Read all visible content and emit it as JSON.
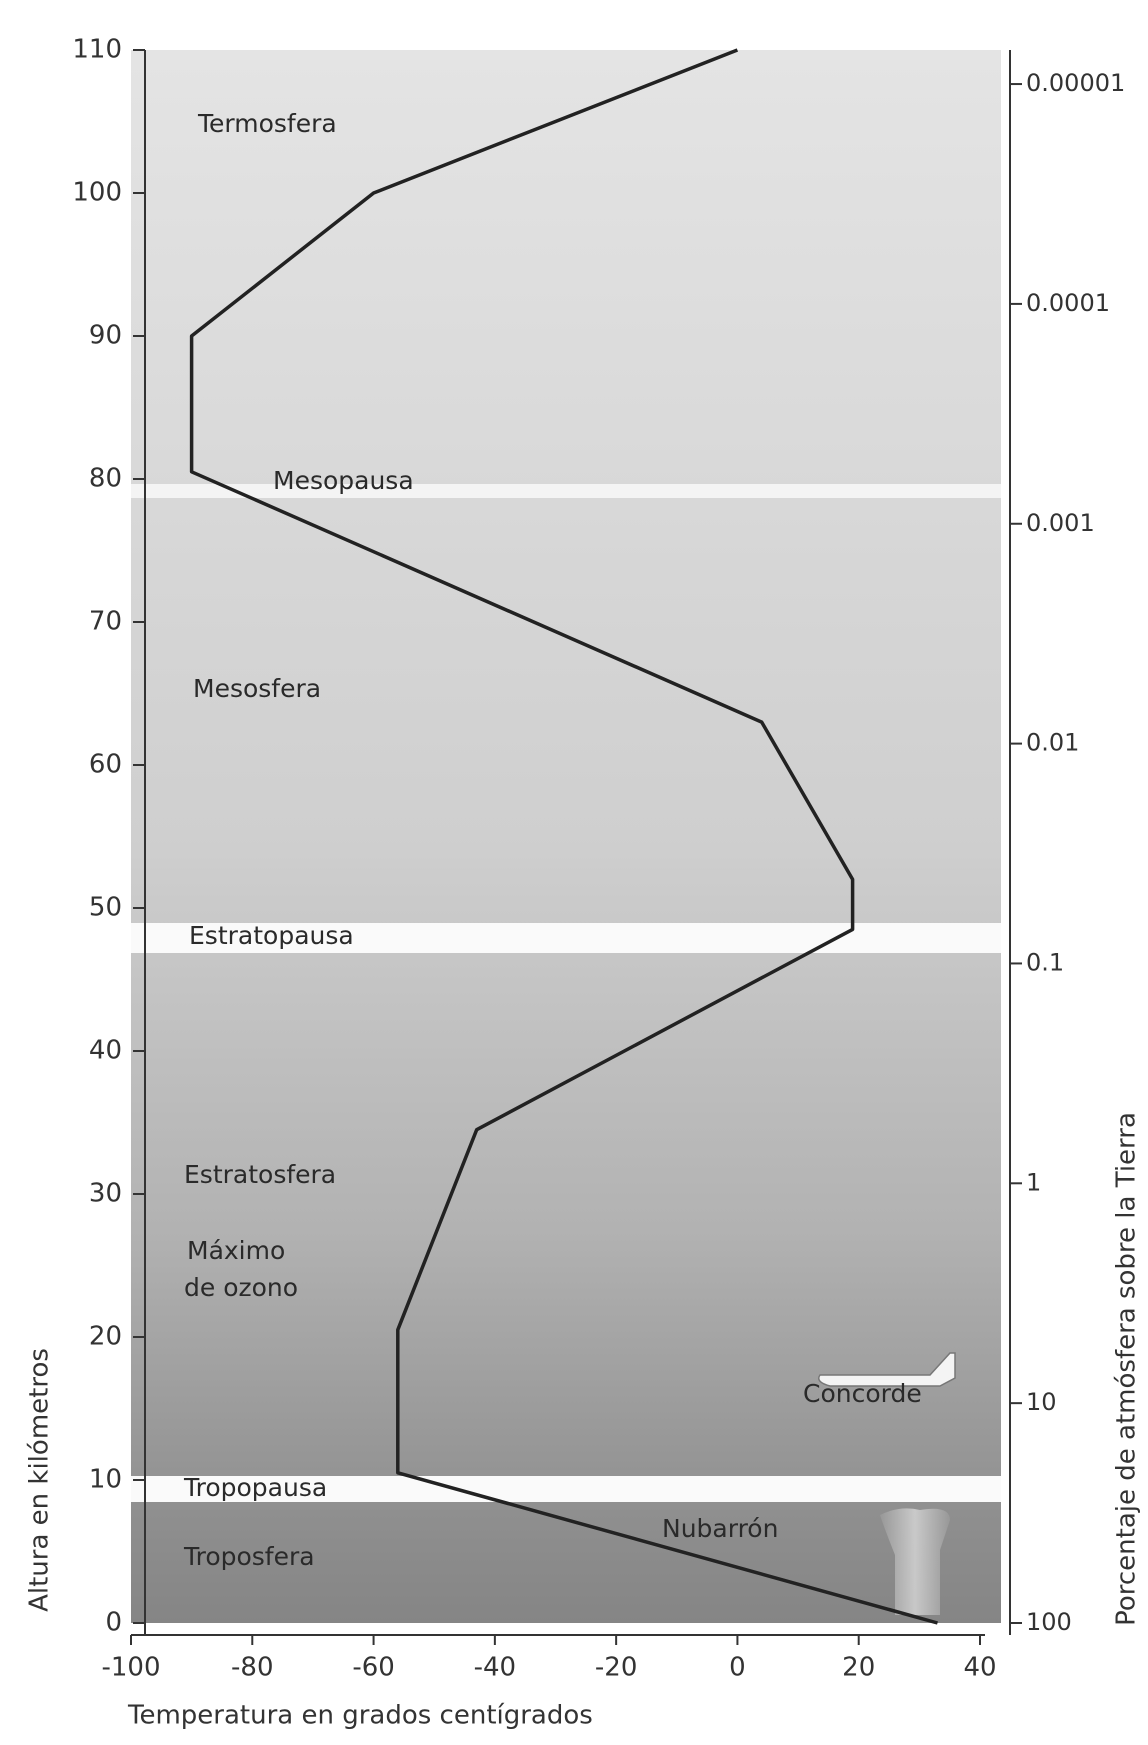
{
  "chart_data": {
    "type": "line",
    "x": [
      0,
      -60,
      -90,
      -90,
      4,
      19,
      19,
      -43,
      -56,
      -56,
      33
    ],
    "values": [
      110,
      100,
      90,
      80.5,
      63,
      52,
      48.5,
      34.5,
      20.5,
      10.5,
      0
    ],
    "color": "#222222",
    "xlim": [
      -100,
      40
    ],
    "xticks": [
      -100,
      -80,
      -60,
      -40,
      -20,
      0,
      20,
      40
    ],
    "ylim": [
      0,
      110
    ],
    "yticks": [
      0,
      10,
      20,
      30,
      40,
      50,
      60,
      70,
      80,
      90,
      100,
      110
    ],
    "y2lim": [
      100,
      7e-06
    ],
    "y2_log": true,
    "y2ticks": [
      100,
      10,
      1,
      0.1,
      0.01,
      0.001,
      0.0001,
      1e-05
    ],
    "xlabel": "Temperatura en grados centígrados",
    "ylabel": "Altura en kilómetros",
    "y2label": "Porcentaje de atmósfera sobre la Tierra",
    "annotations": [
      "Termosfera",
      "Mesopausa",
      "Mesosfera",
      "Estratopausa",
      "Estratosfera",
      "Máximo",
      "de ozono",
      "Concorde",
      "Tropopausa",
      "Nubarrón",
      "Troposfera"
    ]
  }
}
